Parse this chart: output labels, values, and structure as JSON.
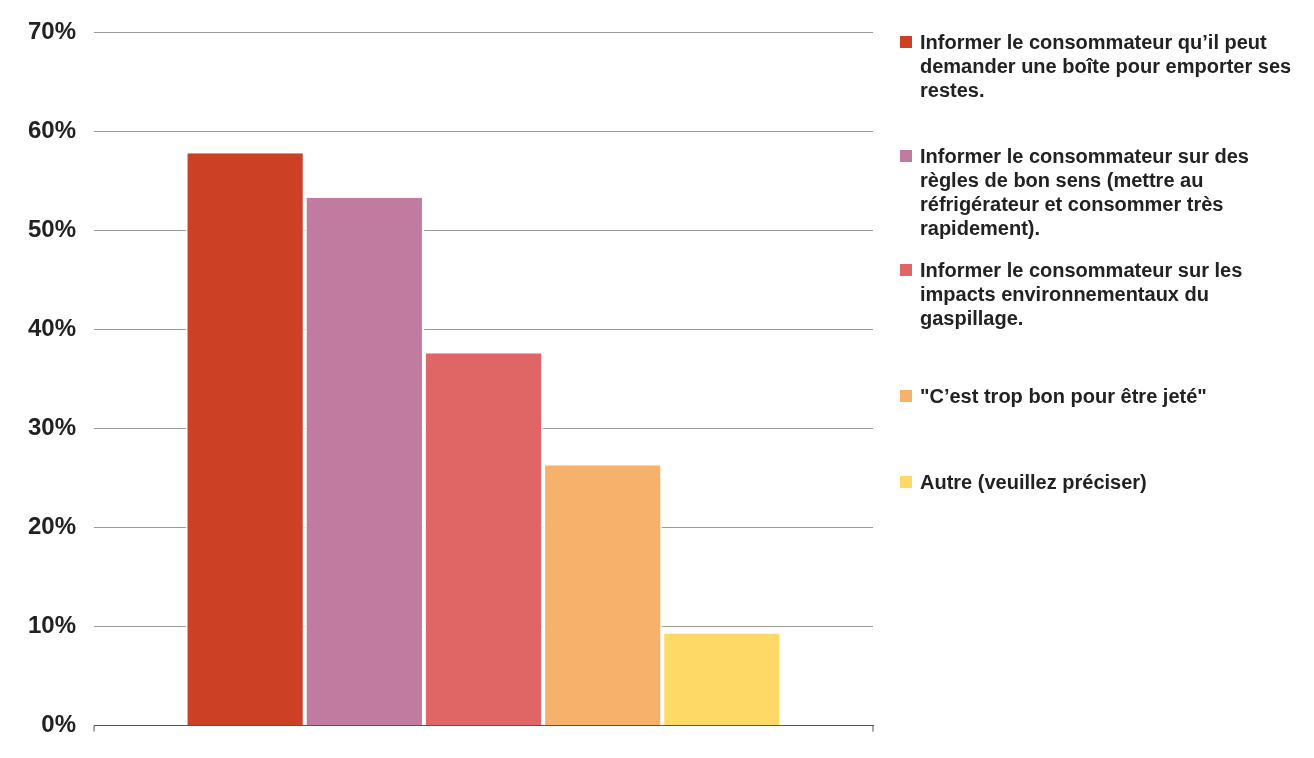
{
  "chart_data": {
    "type": "bar",
    "categories": [
      null
    ],
    "series": [
      {
        "name": "Informer le consommateur qu’il peut demander une boîte pour emporter ses restes.",
        "color": "#cc4125",
        "values": [
          57.8
        ]
      },
      {
        "name": "Informer le consommateur sur des règles de bon sens (mettre au réfrigérateur et consommer très rapidement).",
        "color": "#c27ba0",
        "values": [
          53.3
        ]
      },
      {
        "name": "Informer le consommateur  sur les impacts environnementaux du gaspillage.",
        "color": "#e06666",
        "values": [
          37.6
        ]
      },
      {
        "name": "\"C’est trop bon pour être jeté\"",
        "color": "#f6b26b",
        "values": [
          26.3
        ]
      },
      {
        "name": "Autre (veuillez préciser)",
        "color": "#ffd966",
        "values": [
          9.3
        ]
      }
    ],
    "ylim": [
      0,
      70
    ],
    "yticks": [
      {
        "value": 0,
        "label": "0%"
      },
      {
        "value": 10,
        "label": "10%"
      },
      {
        "value": 20,
        "label": "20%"
      },
      {
        "value": 30,
        "label": "30%"
      },
      {
        "value": 40,
        "label": "40%"
      },
      {
        "value": 50,
        "label": "50%"
      },
      {
        "value": 60,
        "label": "60%"
      },
      {
        "value": 70,
        "label": "70%"
      }
    ],
    "grid": "y",
    "legend": "right"
  }
}
